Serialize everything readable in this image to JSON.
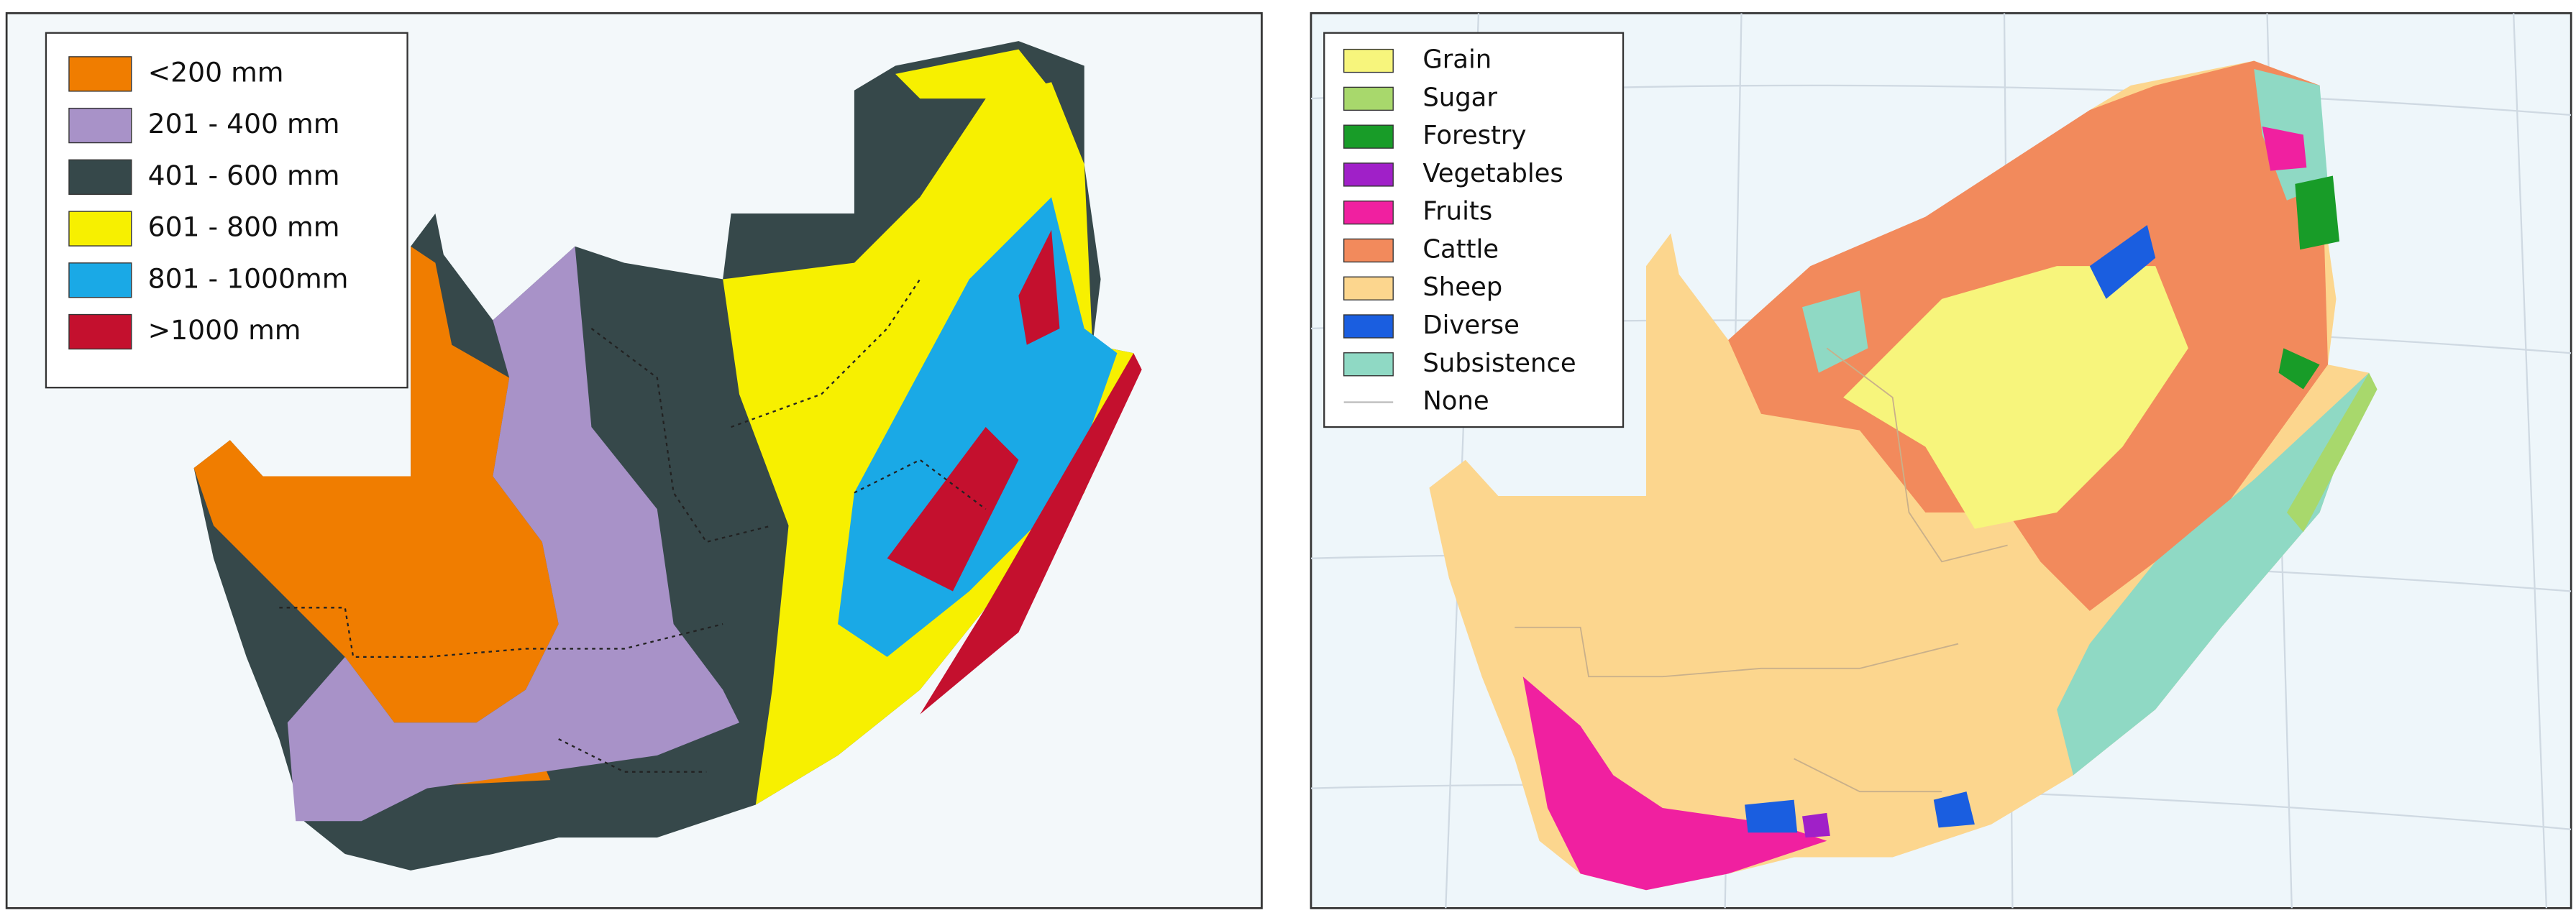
{
  "rainfall_map": {
    "legend": [
      {
        "label": "<200 mm",
        "color": "#f07d00"
      },
      {
        "label": "201 - 400 mm",
        "color": "#a892c8"
      },
      {
        "label": "401 - 600 mm",
        "color": "#36484a"
      },
      {
        "label": "601 - 800 mm",
        "color": "#f7f000"
      },
      {
        "label": "801 - 1000mm",
        "color": "#1aa9e6"
      },
      {
        "label": ">1000 mm",
        "color": "#c4102e"
      }
    ]
  },
  "agriculture_map": {
    "legend": [
      {
        "label": "Grain",
        "color": "#f7f57c"
      },
      {
        "label": "Sugar",
        "color": "#a8d86c"
      },
      {
        "label": "Forestry",
        "color": "#189c28"
      },
      {
        "label": "Vegetables",
        "color": "#a020c8"
      },
      {
        "label": "Fruits",
        "color": "#f020a0"
      },
      {
        "label": "Cattle",
        "color": "#f28a5c"
      },
      {
        "label": "Sheep",
        "color": "#fcd68e"
      },
      {
        "label": "Diverse",
        "color": "#1a5ee0"
      },
      {
        "label": "Subsistence",
        "color": "#8fd9c4"
      },
      {
        "label": "None",
        "color": "#bbbbbb",
        "swatch": "line"
      }
    ]
  }
}
